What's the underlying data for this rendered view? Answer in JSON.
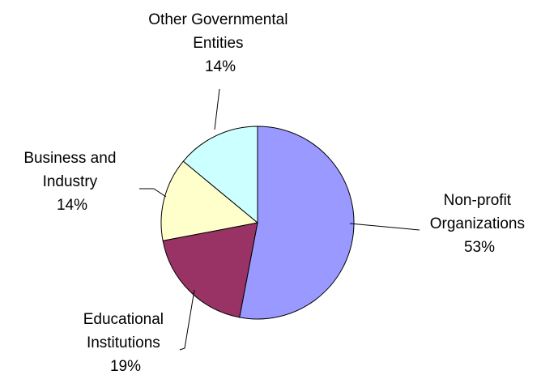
{
  "chart_data": {
    "type": "pie",
    "slices": [
      {
        "label": [
          "Non-profit",
          "Organizations"
        ],
        "value_label": "53%",
        "value": 53,
        "color": "#9999FF"
      },
      {
        "label": [
          "Educational",
          "Institutions"
        ],
        "value_label": "19%",
        "value": 19,
        "color": "#993366"
      },
      {
        "label": [
          "Business and",
          "Industry"
        ],
        "value_label": "14%",
        "value": 14,
        "color": "#FFFFCC"
      },
      {
        "label": [
          "Other Governmental",
          "Entities"
        ],
        "value_label": "14%",
        "value": 14,
        "color": "#CCFFFF"
      }
    ],
    "start_angle": "12 o'clock",
    "direction": "clockwise",
    "labels": "outside with leader lines",
    "legend": "none"
  }
}
